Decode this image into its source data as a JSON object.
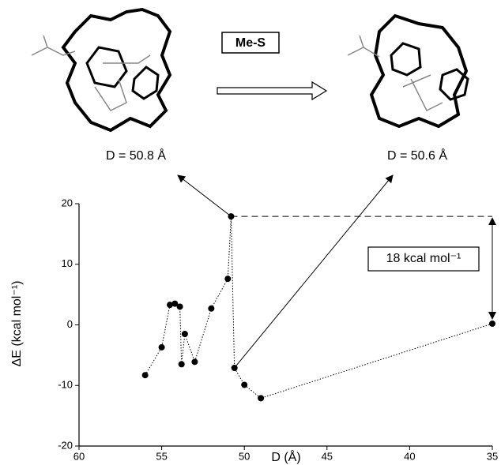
{
  "chart_data": {
    "type": "scatter",
    "reaction_label": "Me-S",
    "left_label": "D = 50.8 Å",
    "right_label": "D = 50.6 Å",
    "annotation": "18 kcal mol⁻¹",
    "x_label": "D (Å)",
    "y_label": "ΔE (kcal mol⁻¹)",
    "x": [
      56.0,
      55.0,
      54.5,
      54.2,
      53.9,
      53.8,
      53.6,
      53.0,
      52.0,
      51.0,
      50.8,
      50.6,
      50.0,
      49.0,
      35.0
    ],
    "values": [
      -8.3,
      -3.7,
      3.3,
      3.5,
      3.0,
      -6.5,
      -1.5,
      -6.1,
      2.7,
      7.6,
      17.9,
      -7.1,
      -9.9,
      -12.1,
      0.2
    ],
    "color": "#000000",
    "xlim": [
      60,
      35
    ],
    "xticks": [
      60,
      55,
      50,
      45,
      40,
      35
    ],
    "ylim": [
      -20,
      20
    ],
    "yticks": [
      -20,
      -10,
      0,
      10,
      20
    ]
  }
}
